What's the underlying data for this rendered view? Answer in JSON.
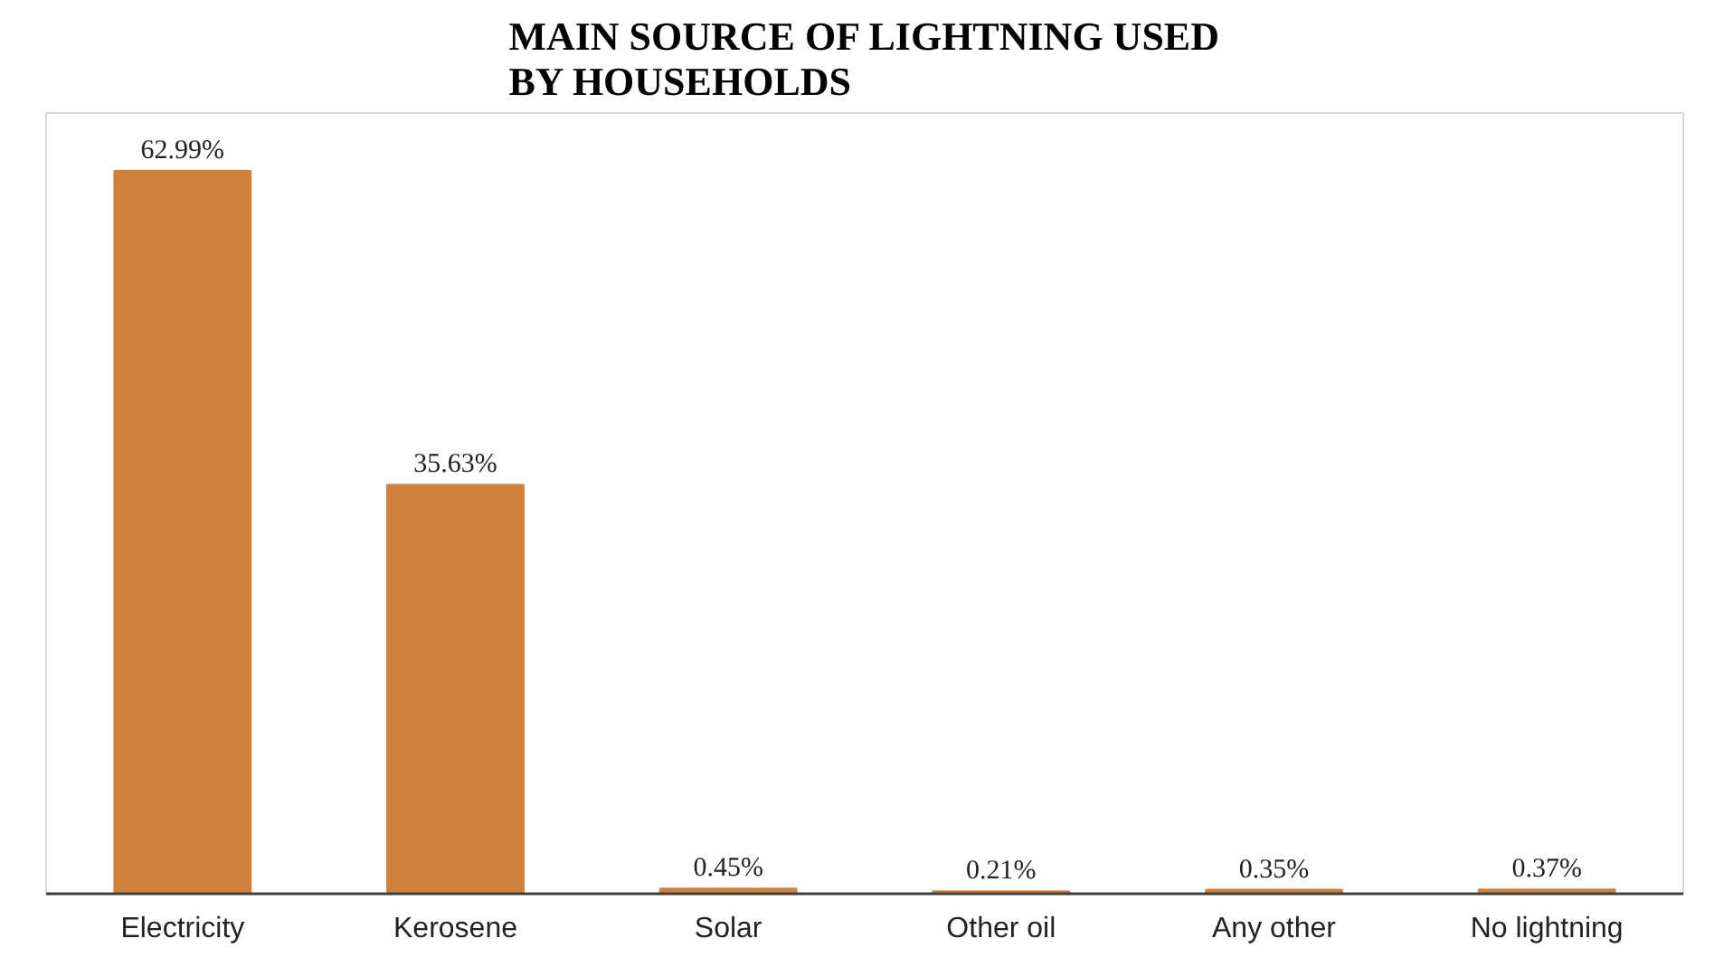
{
  "chart_data": {
    "type": "bar",
    "title": "MAIN SOURCE OF LIGHTNING USED BY HOUSEHOLDS",
    "categories": [
      "Electricity",
      "Kerosene",
      "Solar",
      "Other oil",
      "Any other",
      "No lightning"
    ],
    "values": [
      62.99,
      35.63,
      0.45,
      0.21,
      0.35,
      0.37
    ],
    "color": "#d07f3c",
    "value_labels": [
      "62.99%",
      "35.63%",
      "0.45%",
      "0.21%",
      "0.35%",
      "0.37%"
    ],
    "grid": false
  }
}
